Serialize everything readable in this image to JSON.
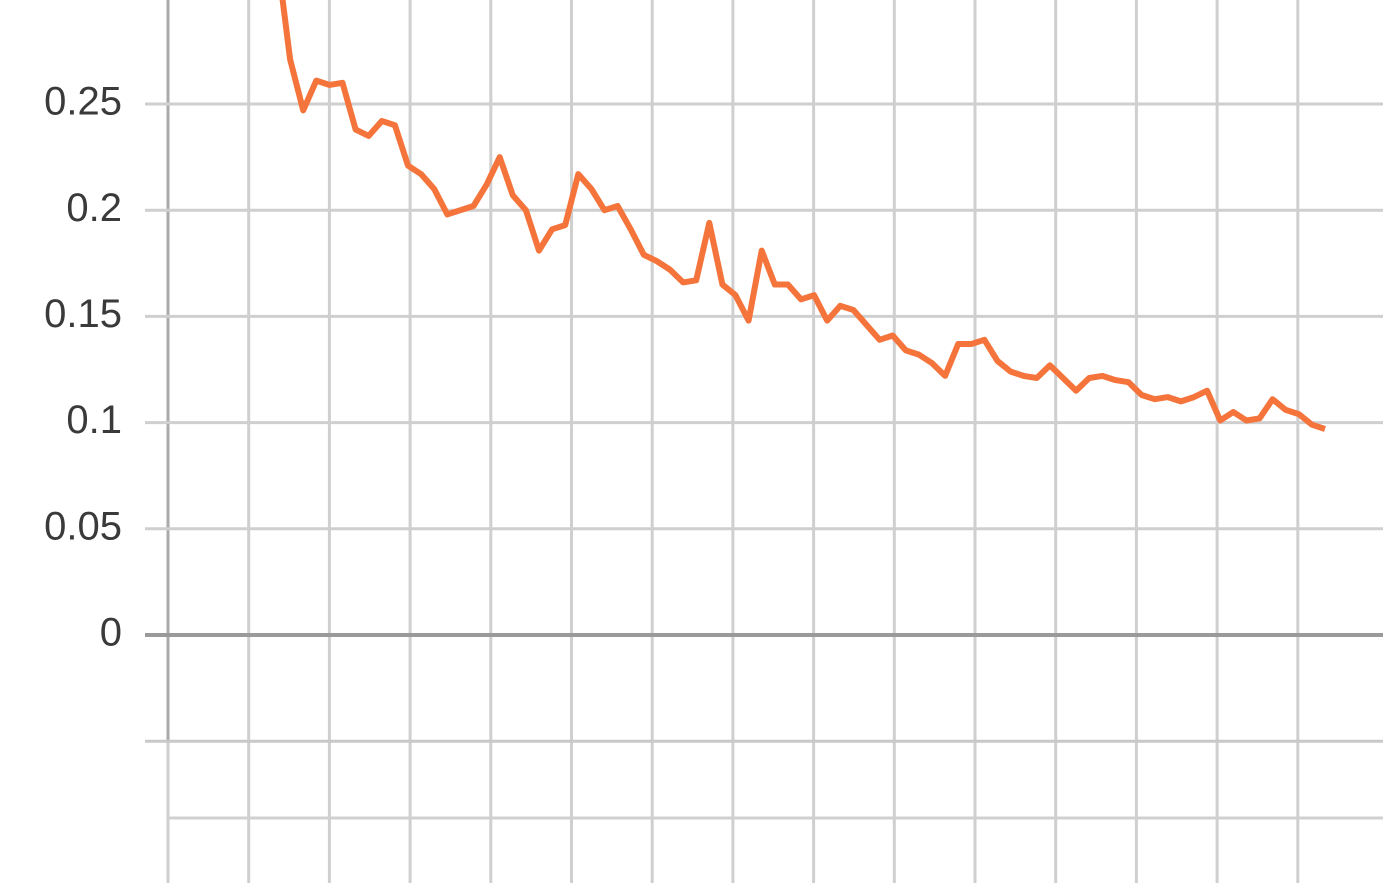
{
  "chart_data": {
    "type": "line",
    "values": [
      0.32,
      0.271,
      0.247,
      0.261,
      0.259,
      0.26,
      0.238,
      0.235,
      0.242,
      0.24,
      0.221,
      0.217,
      0.21,
      0.198,
      0.2,
      0.202,
      0.212,
      0.225,
      0.207,
      0.2,
      0.181,
      0.191,
      0.193,
      0.217,
      0.21,
      0.2,
      0.202,
      0.191,
      0.179,
      0.176,
      0.172,
      0.166,
      0.167,
      0.194,
      0.165,
      0.16,
      0.148,
      0.181,
      0.165,
      0.165,
      0.158,
      0.16,
      0.148,
      0.155,
      0.153,
      0.146,
      0.139,
      0.141,
      0.134,
      0.132,
      0.128,
      0.122,
      0.137,
      0.137,
      0.139,
      0.129,
      0.124,
      0.122,
      0.121,
      0.127,
      0.121,
      0.115,
      0.121,
      0.122,
      0.12,
      0.119,
      0.113,
      0.111,
      0.112,
      0.11,
      0.112,
      0.115,
      0.101,
      0.105,
      0.101,
      0.102,
      0.111,
      0.106,
      0.104,
      0.099,
      0.097
    ],
    "color": "#f4743b",
    "ylim": [
      -0.05,
      0.3
    ],
    "yticks": [
      0,
      0.05,
      0.1,
      0.15,
      0.2,
      0.25
    ],
    "grid": true
  }
}
